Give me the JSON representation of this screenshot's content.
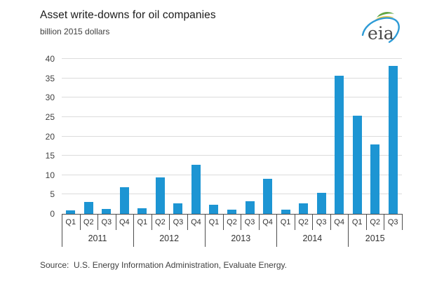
{
  "header": {
    "title": "Asset write-downs for oil companies",
    "subtitle": "billion 2015 dollars",
    "logo_text": "eia",
    "logo_colors": {
      "blue": "#2e9bd6",
      "green": "#62a744",
      "yellow": "#f0c63c",
      "text": "#4a4a4a"
    }
  },
  "chart_data": {
    "type": "bar",
    "title": "Asset write-downs for oil companies",
    "ylabel": "billion 2015 dollars",
    "xlabel": "",
    "ylim": [
      0,
      40
    ],
    "ytick_step": 5,
    "grid": true,
    "legend": "none",
    "bar_color": "#1d95d3",
    "groups": [
      {
        "year": "2011",
        "quarters": [
          "Q1",
          "Q2",
          "Q3",
          "Q4"
        ],
        "values": [
          0.9,
          3.0,
          1.2,
          6.8
        ]
      },
      {
        "year": "2012",
        "quarters": [
          "Q1",
          "Q2",
          "Q3",
          "Q4"
        ],
        "values": [
          1.4,
          9.4,
          2.7,
          12.6
        ]
      },
      {
        "year": "2013",
        "quarters": [
          "Q1",
          "Q2",
          "Q3",
          "Q4"
        ],
        "values": [
          2.3,
          1.1,
          3.2,
          9.1
        ]
      },
      {
        "year": "2014",
        "quarters": [
          "Q1",
          "Q2",
          "Q3",
          "Q4"
        ],
        "values": [
          1.1,
          2.8,
          5.5,
          35.7
        ]
      },
      {
        "year": "2015",
        "quarters": [
          "Q1",
          "Q2",
          "Q3"
        ],
        "values": [
          25.3,
          17.9,
          38.2
        ]
      }
    ]
  },
  "footer": {
    "source": "Source:  U.S. Energy Information Administration, Evaluate Energy."
  }
}
